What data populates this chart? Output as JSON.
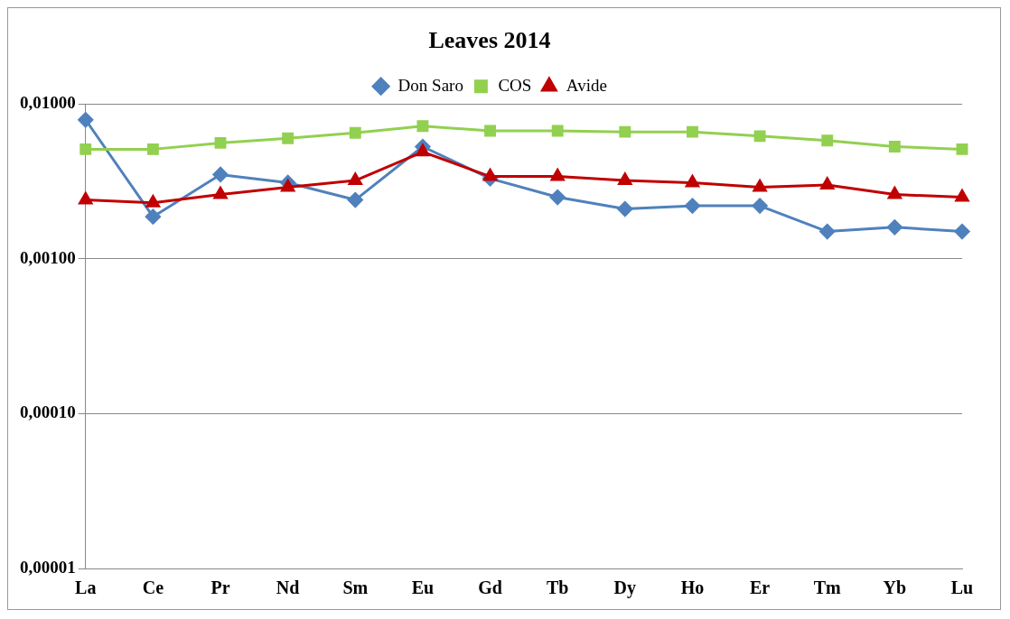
{
  "chart_data": {
    "type": "line",
    "title": "Leaves 2014",
    "categories": [
      "La",
      "Ce",
      "Pr",
      "Nd",
      "Sm",
      "Eu",
      "Gd",
      "Tb",
      "Dy",
      "Ho",
      "Er",
      "Tm",
      "Yb",
      "Lu"
    ],
    "series": [
      {
        "name": "Don Saro",
        "color": "#4f81bd",
        "marker": "diamond",
        "values": [
          0.0079,
          0.00187,
          0.0035,
          0.0031,
          0.0024,
          0.0053,
          0.0033,
          0.0025,
          0.0021,
          0.0022,
          0.0022,
          0.0015,
          0.0016,
          0.0015
        ]
      },
      {
        "name": "COS",
        "color": "#92d050",
        "marker": "square",
        "values": [
          0.0051,
          0.0051,
          0.0056,
          0.006,
          0.0065,
          0.0072,
          0.0067,
          0.0067,
          0.0066,
          0.0066,
          0.0062,
          0.0058,
          0.0053,
          0.0051
        ]
      },
      {
        "name": "Avide",
        "color": "#c00000",
        "marker": "triangle",
        "values": [
          0.0024,
          0.0023,
          0.0026,
          0.0029,
          0.0032,
          0.0049,
          0.0034,
          0.0034,
          0.0032,
          0.0031,
          0.0029,
          0.003,
          0.0026,
          0.0025
        ]
      }
    ],
    "log": "y",
    "ylim": [
      1e-05,
      0.01
    ],
    "yticks": [
      {
        "value": 1e-05,
        "label": "0,00001"
      },
      {
        "value": 0.0001,
        "label": "0,00010"
      },
      {
        "value": 0.001,
        "label": "0,00100"
      },
      {
        "value": 0.01,
        "label": "0,01000"
      }
    ],
    "grid": "y",
    "legend": "top",
    "line_style": "solid"
  }
}
